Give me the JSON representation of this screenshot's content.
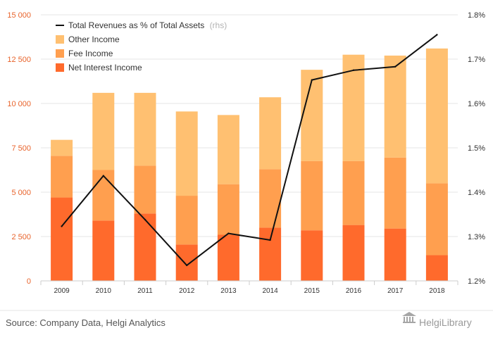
{
  "chart_data": {
    "type": "bar",
    "stacked": true,
    "categories": [
      "2009",
      "2010",
      "2011",
      "2012",
      "2013",
      "2014",
      "2015",
      "2016",
      "2017",
      "2018"
    ],
    "series": [
      {
        "name": "Net Interest Income",
        "color": "#ff6a2c",
        "values": [
          4700,
          3400,
          3800,
          2050,
          2600,
          3000,
          2850,
          3150,
          2950,
          1450
        ]
      },
      {
        "name": "Fee Income",
        "color": "#ff9f4f",
        "values": [
          2350,
          2850,
          2700,
          2750,
          2850,
          3300,
          3900,
          3600,
          4000,
          4050
        ]
      },
      {
        "name": "Other Income",
        "color": "#ffc071",
        "values": [
          900,
          4350,
          4100,
          4750,
          3900,
          4050,
          5150,
          6000,
          5750,
          7600
        ]
      }
    ],
    "line_series": {
      "name": "Total Revenues as % of Total Assets",
      "suffix": "(rhs)",
      "color": "#111111",
      "values": [
        1.323,
        1.437,
        1.338,
        1.235,
        1.307,
        1.292,
        1.653,
        1.675,
        1.683,
        1.755
      ]
    },
    "y_left": {
      "min": 0,
      "max": 15000,
      "ticks": [
        "0",
        "2 500",
        "5 000",
        "7 500",
        "10 000",
        "12 500",
        "15 000"
      ]
    },
    "y_right": {
      "min": 1.2,
      "max": 1.8,
      "ticks": [
        "1.2%",
        "1.3%",
        "1.4%",
        "1.5%",
        "1.6%",
        "1.7%",
        "1.8%"
      ]
    },
    "legend_position": "top-left",
    "grid": true
  },
  "footer": {
    "source": "Source: Company Data, Helgi Analytics",
    "brand": "HelgiLibrary"
  },
  "colors": {
    "left_axis_text": "#e8632b",
    "grid": "#e6e6e6"
  }
}
